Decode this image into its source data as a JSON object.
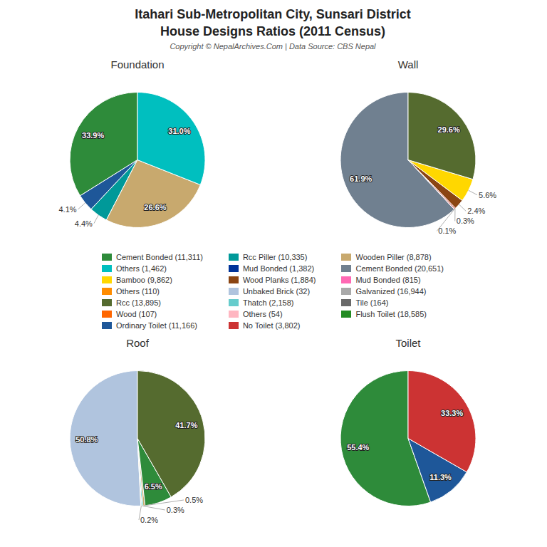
{
  "title": "Itahari Sub-Metropolitan City, Sunsari District",
  "subtitle": "House Designs Ratios (2011 Census)",
  "annotations": [
    "Copyright © NepalArchives.Com | Data Source: CBS Nepal"
  ],
  "legend_items": [
    {
      "label": "Cement Bonded (11,311)",
      "color": "#2E8B3A"
    },
    {
      "label": "Others (1,462)",
      "color": "#00BFBF"
    },
    {
      "label": "Bamboo (9,862)",
      "color": "#FFD700"
    },
    {
      "label": "Others (110)",
      "color": "#FF8C00"
    },
    {
      "label": "Rcc (13,895)",
      "color": "#556B2F"
    },
    {
      "label": "Wood (107)",
      "color": "#FF6600"
    },
    {
      "label": "Ordinary Toilet (11,166)",
      "color": "#1E5799"
    },
    {
      "label": "Rcc Piller (10,335)",
      "color": "#009999"
    },
    {
      "label": "Mud Bonded (1,382)",
      "color": "#003399"
    },
    {
      "label": "Wood Planks (1,884)",
      "color": "#8B4513"
    },
    {
      "label": "Unbaked Brick (32)",
      "color": "#B0C4DE"
    },
    {
      "label": "Thatch (2,158)",
      "color": "#66CCCC"
    },
    {
      "label": "Others (54)",
      "color": "#FFB6C1"
    },
    {
      "label": "No Toilet (3,802)",
      "color": "#CC3333"
    },
    {
      "label": "Wooden Piller (8,878)",
      "color": "#C8A96E"
    },
    {
      "label": "Cement Bonded (20,651)",
      "color": "#708090"
    },
    {
      "label": "Mud Bonded (815)",
      "color": "#FF69B4"
    },
    {
      "label": "Galvanized (16,944)",
      "color": "#A9A9A9"
    },
    {
      "label": "Tile (164)",
      "color": "#696969"
    },
    {
      "label": "Flush Toilet (18,585)",
      "color": "#228B22"
    }
  ],
  "chart_data": [
    {
      "type": "pie",
      "title": "Foundation",
      "values": [
        33.9,
        4.1,
        4.4,
        26.6,
        31.0
      ],
      "value_labels": [
        "33.9%",
        "4.1%",
        "4.4%",
        "26.6%",
        "31.0%"
      ],
      "colors": [
        "#2E8B3A",
        "#1E5799",
        "#009999",
        "#C8A96E",
        "#00BFBF"
      ],
      "data_labels": true
    },
    {
      "type": "pie",
      "title": "Wall",
      "values": [
        61.9,
        0.1,
        0.3,
        2.4,
        5.6,
        29.6
      ],
      "value_labels": [
        "61.9%",
        "0.1%",
        "0.3%",
        "2.4%",
        "5.6%",
        "29.6%"
      ],
      "colors": [
        "#708090",
        "#FF69B4",
        "#CC3333",
        "#8B4513",
        "#FFD700",
        "#556B2F"
      ],
      "data_labels": true
    },
    {
      "type": "pie",
      "title": "Roof",
      "values": [
        50.8,
        0.2,
        0.3,
        0.5,
        6.5,
        41.7
      ],
      "value_labels": [
        "50.8%",
        "0.2%",
        "0.3%",
        "0.5%",
        "6.5%",
        "41.7%"
      ],
      "colors": [
        "#B0C4DE",
        "#FF8C00",
        "#00BFBF",
        "#C8A96E",
        "#2E8B3A",
        "#556B2F"
      ],
      "data_labels": true
    },
    {
      "type": "pie",
      "title": "Toilet",
      "values": [
        55.4,
        11.3,
        33.3
      ],
      "value_labels": [
        "55.4%",
        "11.3%",
        "33.3%"
      ],
      "colors": [
        "#2E8B3A",
        "#1E5799",
        "#CC3333"
      ],
      "data_labels": true
    }
  ]
}
